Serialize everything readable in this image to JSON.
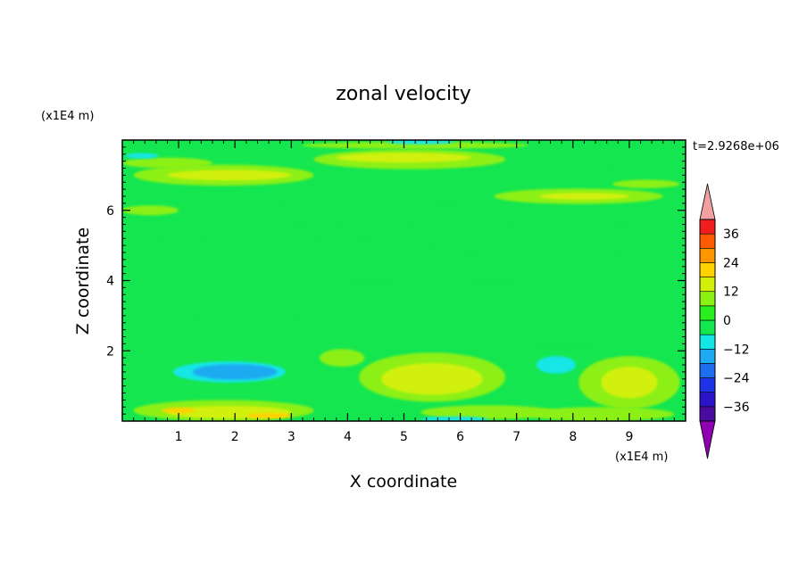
{
  "chart_data": {
    "type": "heatmap",
    "title": "zonal velocity",
    "xlabel": "X coordinate",
    "ylabel": "Z coordinate",
    "x_units": "(x1E4 m)",
    "y_units": "(x1E4 m)",
    "time_label": "t=2.9268e+06",
    "xlim": [
      0,
      10
    ],
    "ylim": [
      0,
      8
    ],
    "x_ticks": [
      "1",
      "2",
      "3",
      "4",
      "5",
      "6",
      "7",
      "8",
      "9"
    ],
    "y_ticks": [
      "2",
      "4",
      "6"
    ],
    "colorbar": {
      "labels": [
        "36",
        "24",
        "12",
        "0",
        "-12",
        "-24",
        "-36"
      ],
      "levels": [
        -42,
        -36,
        -30,
        -24,
        -18,
        -12,
        -6,
        0,
        6,
        12,
        18,
        24,
        30,
        36,
        42
      ],
      "colors": [
        "#8e00b0",
        "#4b0aa0",
        "#2a14c8",
        "#1e32e6",
        "#1e6ef0",
        "#1eaaf0",
        "#14e6e6",
        "#14e650",
        "#28f01e",
        "#8cf014",
        "#d2f00a",
        "#ffd200",
        "#ff9600",
        "#ff5a00",
        "#f01e1e",
        "#f0a0a0"
      ],
      "extend": "both"
    },
    "field": {
      "description_of_features": "mostly near-zero green field; yellow-green positive bands near top and bottom; cyan/blue negative patches",
      "bands": [
        {
          "z": 7.7,
          "x": [
            3.5,
            6.5
          ],
          "value": 8
        },
        {
          "z": 7.0,
          "x": [
            0.2,
            3.0
          ],
          "value": 8
        },
        {
          "z": 6.4,
          "x": [
            7.0,
            9.8
          ],
          "value": 6
        },
        {
          "z": 7.4,
          "x": [
            0,
            10
          ],
          "value": -6
        },
        {
          "z": 1.2,
          "x": [
            4.6,
            6.4
          ],
          "value": 10
        },
        {
          "z": 1.1,
          "x": [
            8.4,
            9.7
          ],
          "value": 8
        },
        {
          "z": 0.25,
          "x": [
            0.3,
            3.2
          ],
          "value": 10
        },
        {
          "z": 1.4,
          "x": [
            1.0,
            3.2
          ],
          "value": -16
        },
        {
          "z": 1.4,
          "x": [
            7.5,
            8.3
          ],
          "value": -10
        },
        {
          "z": 2.8,
          "x": [
            0,
            10
          ],
          "value": -4
        }
      ]
    }
  }
}
